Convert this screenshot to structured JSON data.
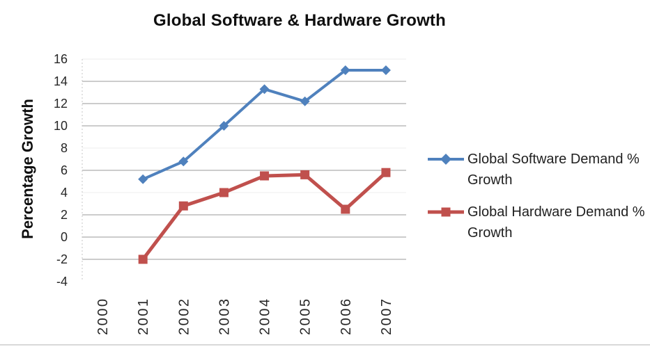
{
  "title": "Global Software & Hardware Growth",
  "y_axis_label": "Percentage Growth",
  "legend": {
    "items": [
      {
        "label": "Global Software Demand % Growth",
        "marker": "diamond",
        "color": "#4F81BD"
      },
      {
        "label": "Global Hardware Demand % Growth",
        "marker": "square",
        "color": "#C0504D"
      }
    ]
  },
  "chart_data": {
    "type": "line",
    "title": "Global Software & Hardware Growth",
    "xlabel": "",
    "ylabel": "Percentage Growth",
    "categories": [
      "2000",
      "2001",
      "2002",
      "2003",
      "2004",
      "2005",
      "2006",
      "2007"
    ],
    "series": [
      {
        "name": "Global Software Demand % Growth",
        "color": "#4F81BD",
        "marker": "diamond",
        "values": [
          null,
          5.2,
          6.8,
          10,
          13.3,
          12.2,
          15,
          15
        ]
      },
      {
        "name": "Global Hardware Demand % Growth",
        "color": "#C0504D",
        "marker": "square",
        "values": [
          null,
          -2,
          2.8,
          4,
          5.5,
          5.6,
          2.5,
          5.8
        ]
      }
    ],
    "ylim": [
      -4,
      16
    ],
    "y_ticks": [
      -4,
      -2,
      0,
      2,
      4,
      6,
      8,
      10,
      12,
      14,
      16
    ],
    "gridlines": {
      "strong": [
        14,
        12,
        10,
        6,
        2,
        0,
        -2
      ],
      "faint": [
        16,
        8,
        4
      ]
    },
    "grid": "on",
    "legend_position": "right",
    "x_tick_rotation": -90
  }
}
